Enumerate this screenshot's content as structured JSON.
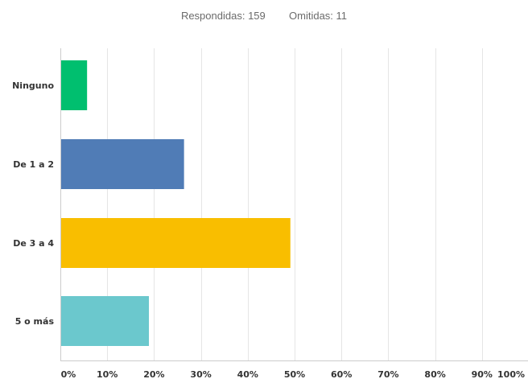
{
  "summary": {
    "answered_label": "Respondidas:",
    "answered_value": "159",
    "skipped_label": "Omitidas:",
    "skipped_value": "11"
  },
  "chart_data": {
    "type": "bar",
    "orientation": "horizontal",
    "categories": [
      "Ninguno",
      "De 1 a 2",
      "De 3 a 4",
      "5 o más"
    ],
    "values": [
      5.7,
      26.4,
      49.1,
      18.9
    ],
    "colors": [
      "#00bf6f",
      "#507cb6",
      "#f9be00",
      "#6bc8cd"
    ],
    "xlim": [
      0,
      100
    ],
    "tick_values": [
      0,
      10,
      20,
      30,
      40,
      50,
      60,
      70,
      80,
      90,
      100
    ],
    "tick_labels": [
      "0%",
      "10%",
      "20%",
      "30%",
      "40%",
      "50%",
      "60%",
      "70%",
      "80%",
      "90%",
      "100%"
    ],
    "grid": true,
    "grid_color": "#e5e5e5",
    "axis_color": "#cccccc"
  }
}
